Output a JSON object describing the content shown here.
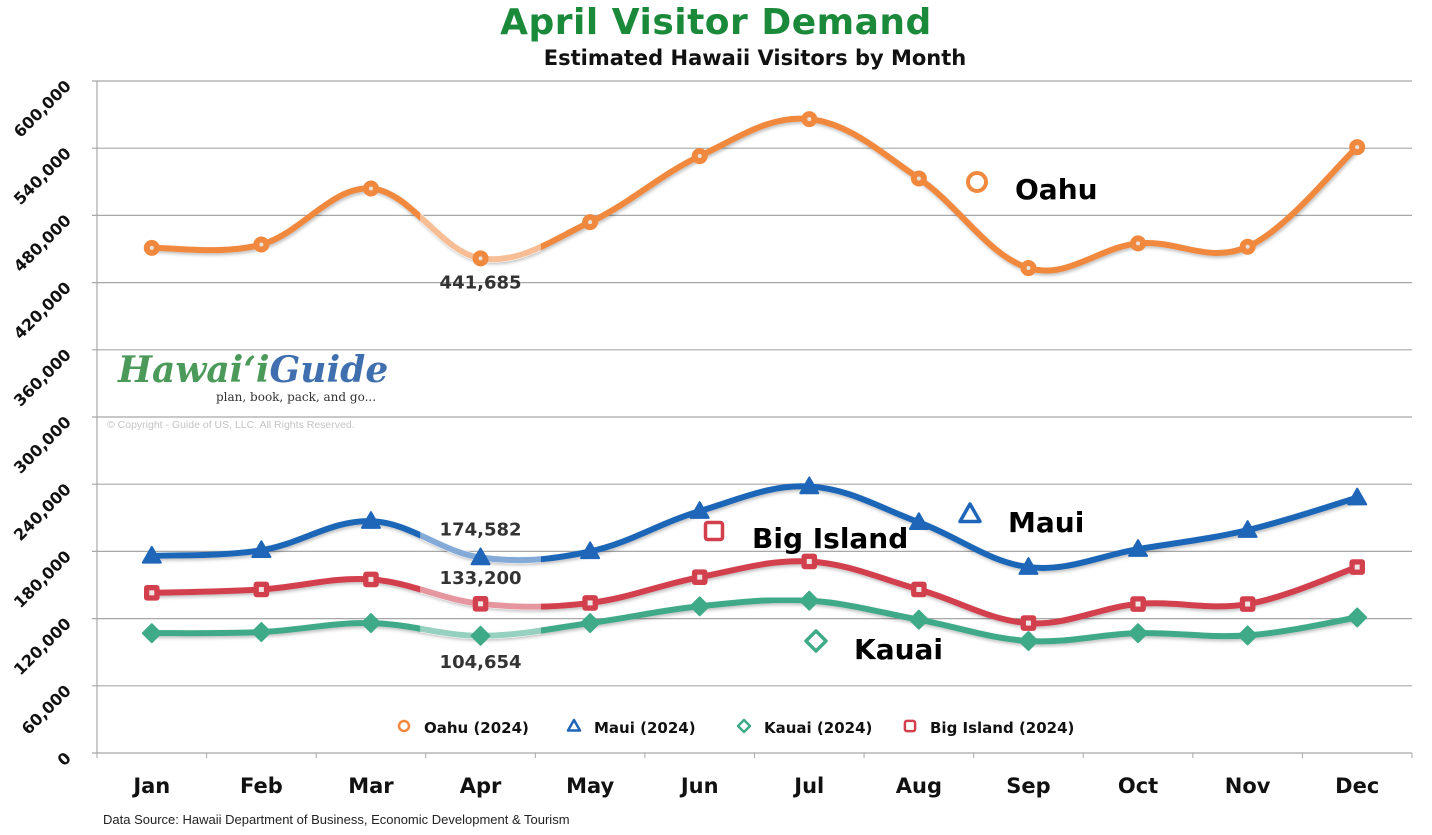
{
  "header": {
    "title": "April Visitor Demand",
    "subtitle": "Estimated Hawaii Visitors by Month"
  },
  "footer": {
    "source": "Data Source: Hawaii Department of Business, Economic Development & Tourism"
  },
  "watermark": {
    "logo_part1": "Hawaiʻi",
    "logo_part2": "Guide",
    "tagline": "plan, book, pack, and go...",
    "copyright": "© Copyright - Guide of US, LLC. All Rights Reserved."
  },
  "colors": {
    "title": "#1a8a3a",
    "oahu": "#f0883e",
    "maui": "#1f66b8",
    "kauai": "#3faa88",
    "big_island": "#d2404e",
    "gridline": "#a8a8a8"
  },
  "chart_data": {
    "type": "line",
    "title": "April Visitor Demand",
    "subtitle": "Estimated Hawaii Visitors by Month",
    "xlabel": "",
    "ylabel": "",
    "ylim": [
      0,
      600000
    ],
    "yticks": [
      0,
      60000,
      120000,
      180000,
      240000,
      300000,
      360000,
      420000,
      480000,
      540000,
      600000
    ],
    "ytick_labels": [
      "0",
      "60,000",
      "120,000",
      "180,000",
      "240,000",
      "300,000",
      "360,000",
      "420,000",
      "480,000",
      "540,000",
      "600,000"
    ],
    "grid": true,
    "legend_position": "bottom-inside",
    "categories": [
      "Jan",
      "Feb",
      "Mar",
      "Apr",
      "May",
      "Jun",
      "Jul",
      "Aug",
      "Sep",
      "Oct",
      "Nov",
      "Dec"
    ],
    "highlight_category": "Apr",
    "series": [
      {
        "key": "oahu",
        "name": "Oahu (2024)",
        "inline_label": "Oahu",
        "marker": "circle",
        "color": "#f0883e",
        "values": [
          451000,
          454000,
          504000,
          441685,
          474000,
          533000,
          566000,
          513000,
          433000,
          455000,
          452000,
          541000
        ],
        "annotation": {
          "category": "Apr",
          "text": "441,685"
        }
      },
      {
        "key": "maui",
        "name": "Maui (2024)",
        "inline_label": "Maui",
        "marker": "triangle",
        "color": "#1f66b8",
        "values": [
          176000,
          181000,
          207000,
          174582,
          180000,
          216000,
          238000,
          206000,
          166000,
          182000,
          199000,
          228000
        ],
        "annotation": {
          "category": "Apr",
          "text": "174,582"
        }
      },
      {
        "key": "kauai",
        "name": "Kauai (2024)",
        "inline_label": "Kauai",
        "marker": "diamond",
        "color": "#3faa88",
        "values": [
          107000,
          108000,
          116000,
          104654,
          116000,
          131000,
          136000,
          119000,
          100000,
          107000,
          105000,
          121000
        ],
        "annotation": {
          "category": "Apr",
          "text": "104,654"
        }
      },
      {
        "key": "big_island",
        "name": "Big Island (2024)",
        "inline_label": "Big Island",
        "marker": "square",
        "color": "#d2404e",
        "values": [
          143000,
          146000,
          155000,
          133200,
          134000,
          157000,
          171000,
          146000,
          116000,
          133000,
          133000,
          166000
        ],
        "annotation": {
          "category": "Apr",
          "text": "133,200"
        }
      }
    ]
  }
}
